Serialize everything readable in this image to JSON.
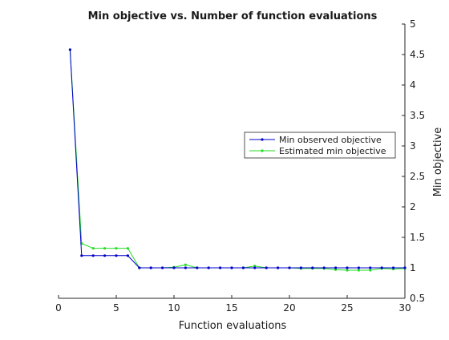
{
  "chart_data": {
    "type": "line",
    "title": "Min objective vs. Number of function evaluations",
    "xlabel": "Function evaluations",
    "ylabel": "Min objective",
    "xlim": [
      0,
      30
    ],
    "ylim": [
      0.5,
      5
    ],
    "xticks": [
      0,
      5,
      10,
      15,
      20,
      25,
      30
    ],
    "yticks": [
      0.5,
      1,
      1.5,
      2,
      2.5,
      3,
      3.5,
      4,
      4.5,
      5
    ],
    "xtick_labels": [
      "0",
      "5",
      "10",
      "15",
      "20",
      "25",
      "30"
    ],
    "ytick_labels": [
      "0.5",
      "1",
      "1.5",
      "2",
      "2.5",
      "3",
      "3.5",
      "4",
      "4.5",
      "5"
    ],
    "y_axis_side": "right",
    "grid": false,
    "legend_position": "right",
    "x": [
      1,
      2,
      3,
      4,
      5,
      6,
      7,
      8,
      9,
      10,
      11,
      12,
      13,
      14,
      15,
      16,
      17,
      18,
      19,
      20,
      21,
      22,
      23,
      24,
      25,
      26,
      27,
      28,
      29,
      30
    ],
    "series": [
      {
        "name": "Min observed objective",
        "color": "#0000cc",
        "values": [
          4.58,
          1.2,
          1.2,
          1.2,
          1.2,
          1.2,
          1.0,
          1.0,
          1.0,
          1.0,
          1.0,
          1.0,
          1.0,
          1.0,
          1.0,
          1.0,
          1.0,
          1.0,
          1.0,
          1.0,
          1.0,
          1.0,
          1.0,
          1.0,
          1.0,
          1.0,
          1.0,
          1.0,
          1.0,
          1.0
        ]
      },
      {
        "name": "Estimated min objective",
        "color": "#22dd22",
        "values": [
          4.58,
          1.4,
          1.32,
          1.32,
          1.32,
          1.32,
          1.0,
          1.0,
          1.0,
          1.01,
          1.05,
          1.0,
          1.0,
          1.0,
          1.0,
          1.0,
          1.03,
          1.0,
          1.0,
          1.0,
          0.99,
          0.99,
          0.99,
          0.97,
          0.96,
          0.96,
          0.96,
          0.99,
          0.98,
          0.99
        ]
      }
    ]
  }
}
